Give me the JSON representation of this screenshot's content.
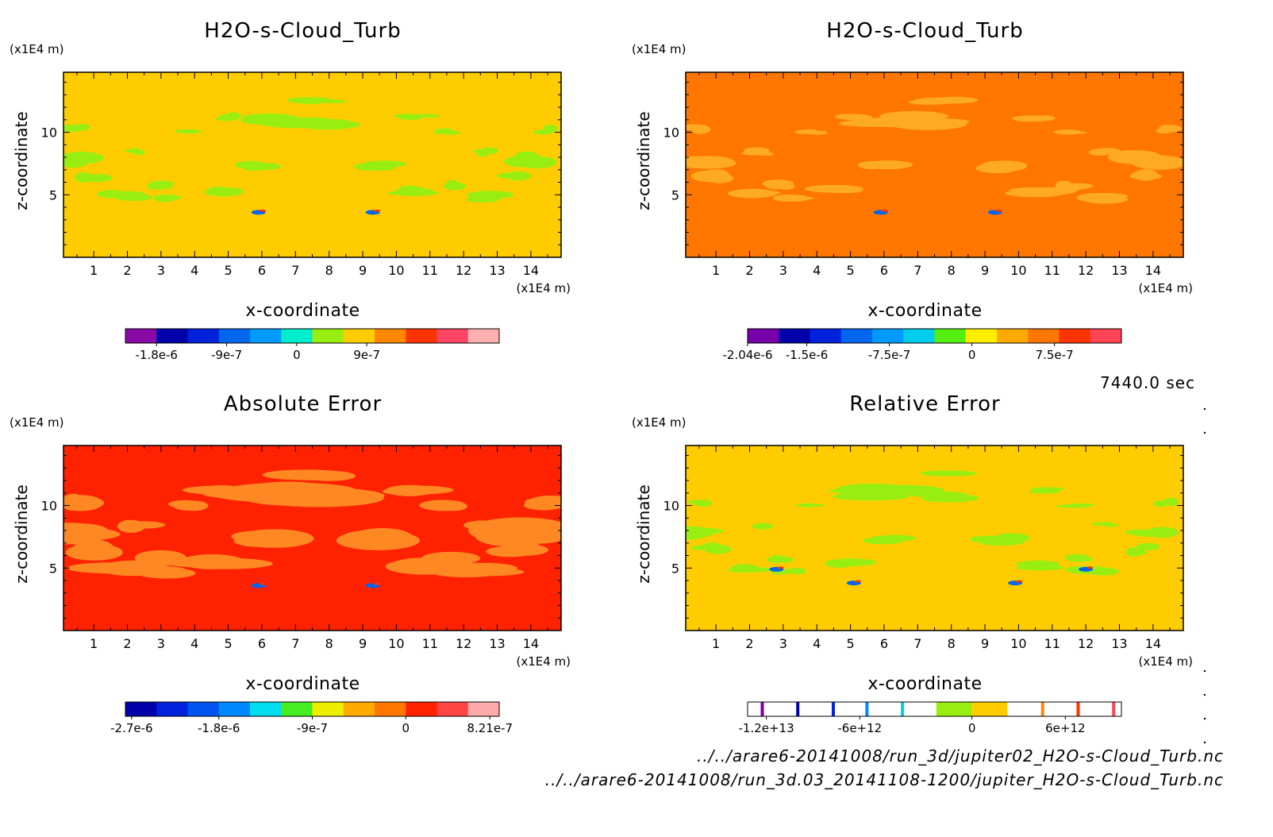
{
  "time_label": "7440.0 sec",
  "footer": {
    "file1": "../../arare6-20141008/run_3d/jupiter02_H2O-s-Cloud_Turb.nc",
    "file2": "../../arare6-20141008/run_3d.03_20141108-1200/jupiter_H2O-s-Cloud_Turb.nc"
  },
  "chart_data": [
    {
      "type": "heatmap",
      "title": "H2O-s-Cloud_Turb",
      "xlabel": "x-coordinate",
      "ylabel": "z-coordinate",
      "xunit": "(x1E4 m)",
      "yunit": "(x1E4 m)",
      "xlim": [
        0.1,
        14.9
      ],
      "ylim": [
        0,
        14.8
      ],
      "xticks": [
        1,
        2,
        3,
        4,
        5,
        6,
        7,
        8,
        9,
        10,
        11,
        12,
        13,
        14
      ],
      "yticks": [
        5,
        10
      ],
      "background": "#ffcc00",
      "patch_color": "#99ee11",
      "colorbar": {
        "colors": [
          "#8a0aa8",
          "#0000aa",
          "#0022dd",
          "#0066ee",
          "#0099ff",
          "#00eecc",
          "#99ee11",
          "#ffcc00",
          "#ff8800",
          "#ff3300",
          "#ff4466",
          "#ffb0b0"
        ],
        "ticks": [
          "-1.8e-6",
          "-9e-7",
          "0",
          "9e-7"
        ],
        "tick_positions": [
          1,
          3.25,
          5.5,
          7.75
        ],
        "ranges": [
          0.3,
          2,
          3.5,
          6
        ]
      }
    },
    {
      "type": "heatmap",
      "title": "H2O-s-Cloud_Turb",
      "xlabel": "x-coordinate",
      "ylabel": "z-coordinate",
      "xunit": "(x1E4 m)",
      "yunit": "(x1E4 m)",
      "xlim": [
        0.1,
        14.9
      ],
      "ylim": [
        0,
        14.8
      ],
      "xticks": [
        1,
        2,
        3,
        4,
        5,
        6,
        7,
        8,
        9,
        10,
        11,
        12,
        13,
        14
      ],
      "yticks": [
        5,
        10
      ],
      "background": "#ff7700",
      "patch_color": "#ffaa22",
      "colorbar": {
        "colors": [
          "#7700aa",
          "#0000aa",
          "#0022dd",
          "#0066ee",
          "#0099ff",
          "#00ccee",
          "#55ee11",
          "#ffee00",
          "#ffaa00",
          "#ff7700",
          "#ff3300",
          "#ff4455"
        ],
        "ticks": [
          "-2.04e-6",
          "-1.5e-6",
          "-7.5e-7",
          "0",
          "7.5e-7"
        ],
        "tick_positions": [
          0,
          1.9,
          4.55,
          7.2,
          9.85
        ]
      }
    },
    {
      "type": "heatmap",
      "title": "Absolute Error",
      "xlabel": "x-coordinate",
      "ylabel": "z-coordinate",
      "xunit": "(x1E4 m)",
      "yunit": "(x1E4 m)",
      "xlim": [
        0.1,
        14.9
      ],
      "ylim": [
        0,
        14.8
      ],
      "xticks": [
        1,
        2,
        3,
        4,
        5,
        6,
        7,
        8,
        9,
        10,
        11,
        12,
        13,
        14
      ],
      "yticks": [
        5,
        10
      ],
      "background": "#ff2200",
      "patch_color": "#ff8822",
      "colorbar": {
        "colors": [
          "#0000aa",
          "#0022dd",
          "#0055ee",
          "#0088ff",
          "#00ddee",
          "#44ee22",
          "#eeee00",
          "#ffaa00",
          "#ff7700",
          "#ff2200",
          "#ff4444",
          "#ffaaaa"
        ],
        "ticks": [
          "-2.7e-6",
          "-1.8e-6",
          "-9e-7",
          "0",
          "8.21e-7"
        ],
        "tick_positions": [
          0.2,
          3.0,
          6.0,
          9.0,
          11.7
        ]
      }
    },
    {
      "type": "heatmap",
      "title": "Relative Error",
      "xlabel": "x-coordinate",
      "ylabel": "z-coordinate",
      "xunit": "(x1E4 m)",
      "yunit": "(x1E4 m)",
      "xlim": [
        0.1,
        14.9
      ],
      "ylim": [
        0,
        14.8
      ],
      "xticks": [
        1,
        2,
        3,
        4,
        5,
        6,
        7,
        8,
        9,
        10,
        11,
        12,
        13,
        14
      ],
      "yticks": [
        5,
        10
      ],
      "background": "#ffcc00",
      "patch_color": "#99ee11",
      "colorbar": {
        "ticks": [
          "-1.2e+13",
          "-6e+12",
          "0",
          "6e+12"
        ],
        "tick_positions": [
          0.05,
          0.3,
          0.6,
          0.85
        ]
      }
    }
  ]
}
